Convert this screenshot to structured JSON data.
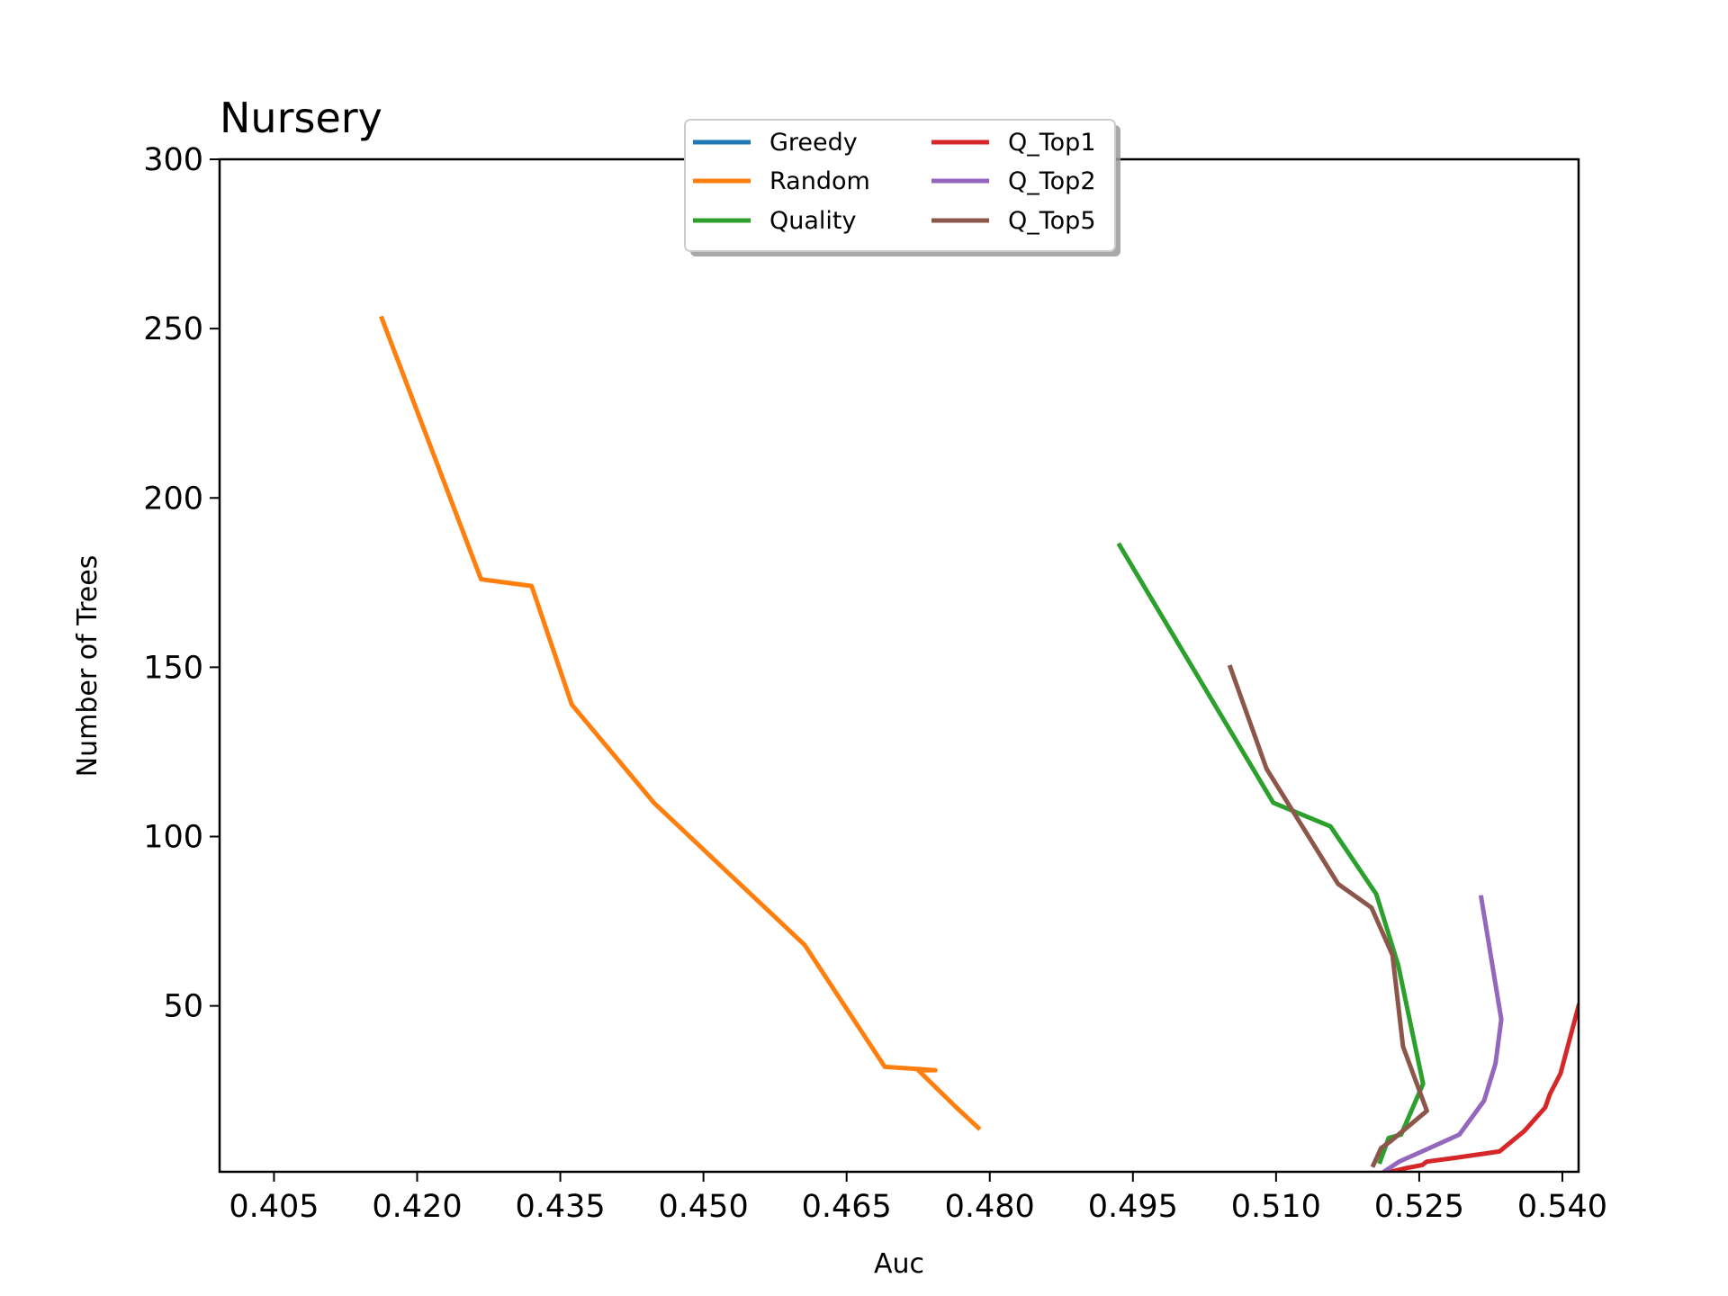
{
  "chart_data": {
    "type": "line",
    "title": "Nursery",
    "xlabel": "Auc",
    "ylabel": "Number of Trees",
    "xlim": [
      0.3993,
      0.5417
    ],
    "ylim": [
      1,
      300
    ],
    "xticks": [
      "0.405",
      "0.420",
      "0.435",
      "0.450",
      "0.465",
      "0.480",
      "0.495",
      "0.510",
      "0.525",
      "0.540"
    ],
    "yticks": [
      "50",
      "100",
      "150",
      "200",
      "250",
      "300"
    ],
    "grid": false,
    "legend": {
      "placement": "upper-center",
      "columns": 2
    },
    "series": [
      {
        "name": "Greedy",
        "color": "#1f77b4",
        "points": []
      },
      {
        "name": "Random",
        "color": "#ff7f0e",
        "points": [
          [
            0.4163,
            253
          ],
          [
            0.4267,
            176
          ],
          [
            0.432,
            174
          ],
          [
            0.4362,
            139
          ],
          [
            0.4448,
            110
          ],
          [
            0.4606,
            68
          ],
          [
            0.469,
            32
          ],
          [
            0.4743,
            31
          ],
          [
            0.4725,
            31
          ],
          [
            0.4765,
            20
          ],
          [
            0.4788,
            14
          ]
        ]
      },
      {
        "name": "Quality",
        "color": "#2ca02c",
        "points": [
          [
            0.4936,
            186
          ],
          [
            0.5097,
            110
          ],
          [
            0.5157,
            103
          ],
          [
            0.5205,
            83
          ],
          [
            0.5228,
            62
          ],
          [
            0.5254,
            27
          ],
          [
            0.5231,
            12
          ],
          [
            0.5218,
            11
          ],
          [
            0.5209,
            4
          ]
        ]
      },
      {
        "name": "Q_Top1",
        "color": "#d62728",
        "points": [
          [
            0.5417,
            50
          ],
          [
            0.5398,
            30
          ],
          [
            0.5387,
            24
          ],
          [
            0.5382,
            20
          ],
          [
            0.536,
            13
          ],
          [
            0.5334,
            7
          ],
          [
            0.5285,
            5
          ],
          [
            0.5258,
            4
          ],
          [
            0.5253,
            3
          ],
          [
            0.5235,
            2
          ],
          [
            0.522,
            1
          ]
        ]
      },
      {
        "name": "Q_Top2",
        "color": "#9467bd",
        "points": [
          [
            0.5315,
            82
          ],
          [
            0.5336,
            46
          ],
          [
            0.533,
            33
          ],
          [
            0.5318,
            22
          ],
          [
            0.5292,
            12
          ],
          [
            0.5253,
            7
          ],
          [
            0.5237,
            5
          ],
          [
            0.5229,
            4
          ],
          [
            0.5213,
            1
          ],
          [
            0.5208,
            0
          ]
        ]
      },
      {
        "name": "Q_Top5",
        "color": "#8c564b",
        "points": [
          [
            0.5052,
            150
          ],
          [
            0.509,
            120
          ],
          [
            0.5165,
            86
          ],
          [
            0.52,
            79
          ],
          [
            0.5222,
            65
          ],
          [
            0.5233,
            38
          ],
          [
            0.5258,
            19
          ],
          [
            0.522,
            10
          ],
          [
            0.521,
            8
          ],
          [
            0.5202,
            3
          ]
        ]
      }
    ]
  }
}
